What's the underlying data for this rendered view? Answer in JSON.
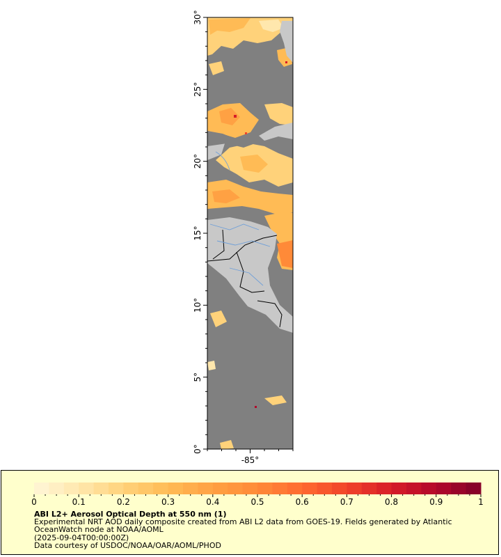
{
  "map": {
    "axes": {
      "latitude": {
        "ticks": [
          "0°",
          "5°",
          "10°",
          "15°",
          "20°",
          "25°",
          "30°"
        ],
        "values": [
          0,
          5,
          10,
          15,
          20,
          25,
          30
        ],
        "range": [
          0,
          30
        ]
      },
      "longitude": {
        "ticks": [
          "-85°"
        ],
        "values": [
          -85
        ],
        "range": [
          -88,
          -82
        ]
      }
    },
    "colors": {
      "ocean_nodata": "#808080",
      "land": "#c8c8c8",
      "borders": "#000000",
      "rivers": "#6f9fd8"
    }
  },
  "legend": {
    "colorbar": {
      "min": 0,
      "max": 1,
      "labels": [
        "0",
        "0.1",
        "0.2",
        "0.3",
        "0.4",
        "0.5",
        "0.6",
        "0.7",
        "0.8",
        "0.9",
        "1"
      ],
      "colors": [
        "#fff6d8",
        "#ffe7ad",
        "#ffd27a",
        "#ffbb55",
        "#ffa143",
        "#ff8a38",
        "#ff6a30",
        "#f1442a",
        "#d71c27",
        "#b2082b",
        "#7f0028"
      ]
    },
    "title": "ABI L2+ Aerosol Optical Depth at 550 nm (1)",
    "description": "Experimental NRT AOD daily composite created from ABI L2 data from GOES-19. Fields generated by Atlantic OceanWatch node at NOAA/AOML",
    "time": "(2025-09-04T00:00:00Z)",
    "credit": "Data courtesy of USDOC/NOAA/OAR/AOML/PHOD"
  }
}
